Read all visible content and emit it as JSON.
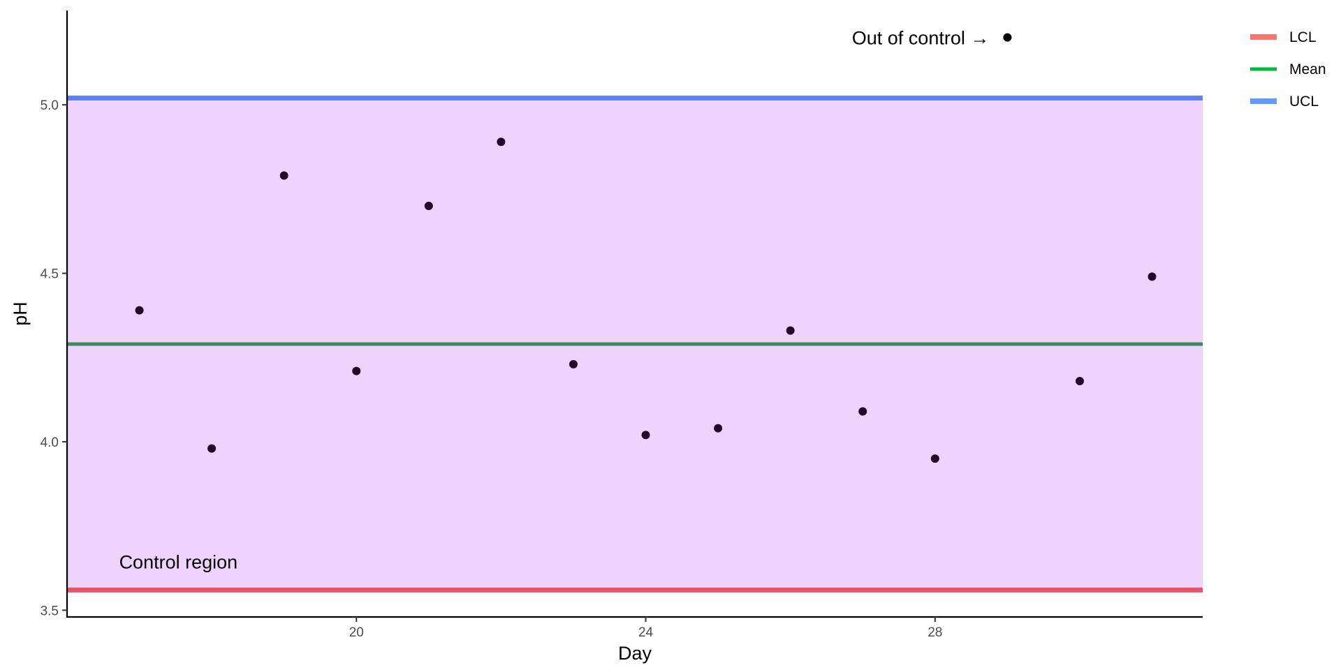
{
  "chart_data": {
    "type": "scatter",
    "xlabel": "Day",
    "ylabel": "pH",
    "xlim": [
      16.0,
      31.7
    ],
    "ylim": [
      3.48,
      5.28
    ],
    "x_ticks": [
      20,
      24,
      28
    ],
    "y_ticks": [
      3.5,
      4.0,
      4.5,
      5.0
    ],
    "x_tick_labels": [
      "20",
      "24",
      "28"
    ],
    "y_tick_labels": [
      "3.5",
      "4.0",
      "4.5",
      "5.0"
    ],
    "points": [
      {
        "x": 17,
        "y": 4.39
      },
      {
        "x": 18,
        "y": 3.98
      },
      {
        "x": 19,
        "y": 4.79
      },
      {
        "x": 20,
        "y": 4.21
      },
      {
        "x": 21,
        "y": 4.7
      },
      {
        "x": 22,
        "y": 4.89
      },
      {
        "x": 23,
        "y": 4.23
      },
      {
        "x": 24,
        "y": 4.02
      },
      {
        "x": 25,
        "y": 4.04
      },
      {
        "x": 26,
        "y": 4.33
      },
      {
        "x": 27,
        "y": 4.09
      },
      {
        "x": 28,
        "y": 3.95
      },
      {
        "x": 30,
        "y": 4.18
      },
      {
        "x": 31,
        "y": 4.49
      }
    ],
    "out_of_control_point": {
      "x": 29,
      "y": 5.2
    },
    "control_lines": {
      "ucl": 5.02,
      "mean": 4.29,
      "lcl": 3.56
    },
    "annotations": {
      "control_region": "Control region",
      "out_of_control": "Out of control →"
    },
    "legend": {
      "position": "right",
      "items": [
        {
          "label": "LCL",
          "color": "#F8766D"
        },
        {
          "label": "Mean",
          "color": "#00BA38"
        },
        {
          "label": "UCL",
          "color": "#619CFF"
        }
      ]
    },
    "colors": {
      "region_fill": "#EED3FD",
      "ucl_line": "#5A82F6",
      "mean_line": "#3E8A5A",
      "lcl_line": "#E8526A",
      "point": "#220A2A",
      "out_point": "#000000"
    },
    "grid": false
  }
}
